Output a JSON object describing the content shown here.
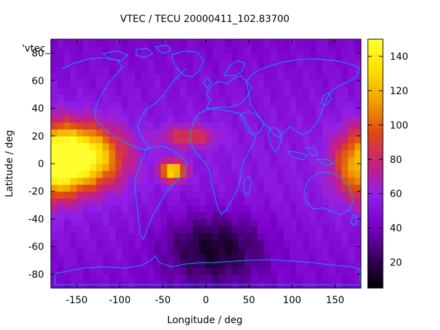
{
  "chart_data": {
    "type": "heatmap",
    "title": "VTEC / TECU 20000411_102.83700",
    "xlabel": "Longitude / deg",
    "ylabel": "Latitude / deg",
    "key_label": "'vtec_",
    "xlim": [
      -180,
      180
    ],
    "ylim": [
      -90,
      90
    ],
    "x_ticks": [
      -150,
      -100,
      -50,
      0,
      50,
      100,
      150
    ],
    "y_ticks": [
      -80,
      -60,
      -40,
      -20,
      0,
      20,
      40,
      60,
      80
    ],
    "colorbar": {
      "range": [
        5,
        150
      ],
      "ticks": [
        20,
        40,
        60,
        80,
        100,
        120,
        140
      ],
      "palette": [
        "#000000",
        "#3a0060",
        "#7a00c8",
        "#9020e8",
        "#c8207c",
        "#e04a10",
        "#f0a000",
        "#ffe000",
        "#ffff30"
      ]
    },
    "grid": false,
    "overlay": "continent coastlines",
    "coastline_color": "#00a0ff",
    "features": [
      {
        "name": "pacific_peak",
        "lon": -145,
        "lat": 5,
        "value": 145
      },
      {
        "name": "east_peak",
        "lon": 180,
        "lat": 0,
        "value": 115
      },
      {
        "name": "south_atlantic_peak",
        "lon": -38,
        "lat": -5,
        "value": 130
      },
      {
        "name": "west_africa_band",
        "lon": -20,
        "lat": 20,
        "value": 80
      },
      {
        "name": "southern_minimum",
        "lon": 10,
        "lat": -60,
        "value": 8
      }
    ]
  }
}
